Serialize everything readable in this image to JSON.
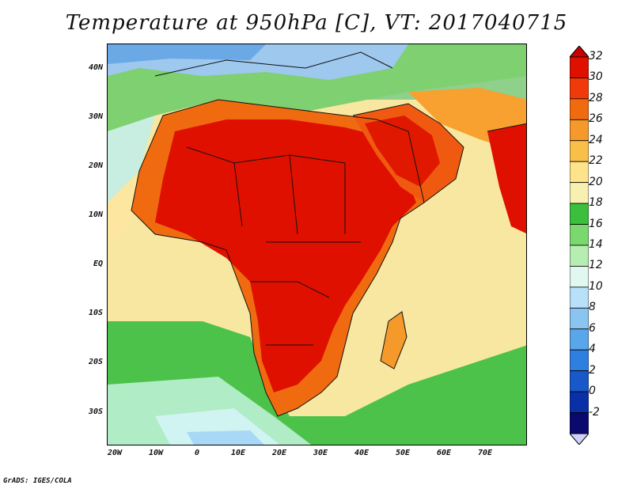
{
  "title": "Temperature at 950hPa [C], VT: 2017040715",
  "credit": "GrADS: IGES/COLA",
  "map": {
    "lat_labels": [
      "40N",
      "30N",
      "20N",
      "10N",
      "EQ",
      "10S",
      "20S",
      "30S"
    ],
    "lon_labels": [
      "20W",
      "10W",
      "0",
      "10E",
      "20E",
      "30E",
      "40E",
      "50E",
      "60E",
      "70E"
    ],
    "lon_range": [
      -22,
      80
    ],
    "lat_range": [
      -37,
      45
    ]
  },
  "colorbar": {
    "labels": [
      "32",
      "30",
      "28",
      "26",
      "24",
      "22",
      "20",
      "18",
      "16",
      "14",
      "12",
      "10",
      "8",
      "6",
      "4",
      "2",
      "0",
      "-2"
    ],
    "colors": [
      "#e01000",
      "#f03a0a",
      "#f06b10",
      "#f59a2a",
      "#f8c048",
      "#fde48c",
      "#f7f0b0",
      "#3cbf3c",
      "#7ad96e",
      "#b5eeb0",
      "#e0f8f0",
      "#b8e0f8",
      "#8ac4f0",
      "#5aa6ea",
      "#2f7fe0",
      "#1858c8",
      "#0a30a8",
      "#0a0a6e"
    ],
    "top_arrow_color": "#c80000",
    "bottom_arrow_color": "#d0d0f8"
  }
}
